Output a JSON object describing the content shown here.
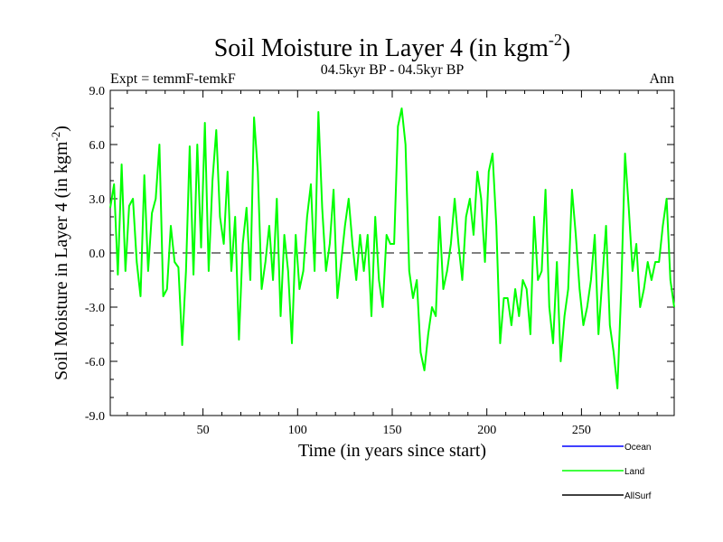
{
  "chart_data": {
    "type": "line",
    "title_main": "Soil Moisture in Layer 4 (in kgm",
    "title_sup": "-2",
    "title_close": ")",
    "subtitle_left": "Expt = temmF-temkF",
    "subtitle_center": "04.5kyr BP - 04.5kyr BP",
    "subtitle_right": "Ann",
    "xlabel": "Time (in years since start)",
    "ylabel_main": "Soil Moisture in Layer 4 (in kgm",
    "ylabel_sup": "-2",
    "ylabel_close": ")",
    "xlim": [
      1,
      299
    ],
    "ylim": [
      -9,
      9
    ],
    "xticks": [
      50,
      100,
      150,
      200,
      250
    ],
    "yticks": [
      -9,
      -6,
      -3,
      0,
      3,
      6,
      9
    ],
    "ytick_labels": [
      "-9.0",
      "-6.0",
      "-3.0",
      "0.0",
      "3.0",
      "6.0",
      "9.0"
    ],
    "reference_line": 0,
    "legend": [
      {
        "name": "Ocean",
        "color": "#0000ff"
      },
      {
        "name": "Land",
        "color": "#00ff00"
      },
      {
        "name": "AllSurf",
        "color": "#000000"
      }
    ],
    "series": [
      {
        "name": "Land",
        "color": "#00ff00",
        "x": [
          1,
          3,
          5,
          7,
          9,
          11,
          13,
          15,
          17,
          19,
          21,
          23,
          25,
          27,
          29,
          31,
          33,
          35,
          37,
          39,
          41,
          43,
          45,
          47,
          49,
          51,
          53,
          55,
          57,
          59,
          61,
          63,
          65,
          67,
          69,
          71,
          73,
          75,
          77,
          79,
          81,
          83,
          85,
          87,
          89,
          91,
          93,
          95,
          97,
          99,
          101,
          103,
          105,
          107,
          109,
          111,
          113,
          115,
          117,
          119,
          121,
          123,
          125,
          127,
          129,
          131,
          133,
          135,
          137,
          139,
          141,
          143,
          145,
          147,
          149,
          151,
          153,
          155,
          157,
          159,
          161,
          163,
          165,
          167,
          169,
          171,
          173,
          175,
          177,
          179,
          181,
          183,
          185,
          187,
          189,
          191,
          193,
          195,
          197,
          199,
          201,
          203,
          205,
          207,
          209,
          211,
          213,
          215,
          217,
          219,
          221,
          223,
          225,
          227,
          229,
          231,
          233,
          235,
          237,
          239,
          241,
          243,
          245,
          247,
          249,
          251,
          253,
          255,
          257,
          259,
          261,
          263,
          265,
          267,
          269,
          271,
          273,
          275,
          277,
          279,
          281,
          283,
          285,
          287,
          289,
          291,
          293,
          295,
          297,
          299
        ],
        "values": [
          2.5,
          3.8,
          -1.2,
          4.9,
          -1.0,
          2.6,
          3.0,
          -0.5,
          -2.4,
          4.3,
          -1.0,
          2.2,
          3.0,
          6.0,
          -2.4,
          -2.0,
          1.5,
          -0.5,
          -0.8,
          -5.1,
          -1.0,
          5.9,
          -1.2,
          6.0,
          0.3,
          7.2,
          -1.0,
          4.0,
          6.8,
          2.0,
          0.5,
          4.5,
          -1.0,
          2.0,
          -4.8,
          0.5,
          2.5,
          -1.5,
          7.5,
          4.5,
          -2.0,
          -0.5,
          1.5,
          -1.5,
          3.0,
          -3.5,
          1.0,
          -1.0,
          -5.0,
          1.0,
          -2.0,
          -1.0,
          2.0,
          3.8,
          -1.0,
          7.8,
          2.5,
          -1.0,
          0.5,
          3.5,
          -2.5,
          -0.5,
          1.5,
          3.0,
          0.5,
          -1.5,
          1.0,
          -1.0,
          1.0,
          -3.5,
          2.0,
          -1.5,
          -3.0,
          1.0,
          0.5,
          0.5,
          7.0,
          8.0,
          6.0,
          -1.0,
          -2.5,
          -1.5,
          -5.5,
          -6.5,
          -4.5,
          -3.0,
          -3.5,
          2.0,
          -2.0,
          -1.0,
          0.5,
          3.0,
          0.5,
          -1.5,
          2.0,
          3.0,
          1.0,
          4.5,
          3.0,
          -0.5,
          4.5,
          5.5,
          1.5,
          -5.0,
          -2.5,
          -2.5,
          -4.0,
          -2.0,
          -3.5,
          -1.5,
          -2.0,
          -4.5,
          2.0,
          -1.5,
          -1.0,
          3.5,
          -3.0,
          -5.0,
          -0.5,
          -6.0,
          -3.5,
          -2.0,
          3.5,
          1.0,
          -2.0,
          -4.0,
          -3.0,
          -1.5,
          1.0,
          -4.5,
          -1.5,
          1.5,
          -4.0,
          -5.5,
          -7.5,
          -2.0,
          5.5,
          2.5,
          -1.0,
          0.5,
          -3.0,
          -2.0,
          -0.5,
          -1.5,
          -0.5,
          -0.5,
          1.5,
          3.0,
          -1.5,
          -3.0
        ]
      }
    ]
  }
}
